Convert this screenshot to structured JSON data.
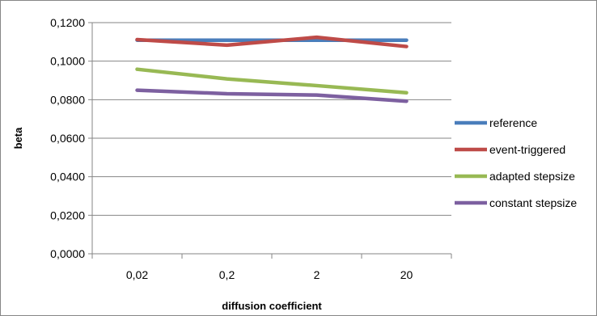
{
  "chart_data": {
    "type": "line",
    "categories": [
      "0,02",
      "0,2",
      "2",
      "20"
    ],
    "xlabel": "diffusion coefficient",
    "ylabel": "beta",
    "ylim": [
      0,
      0.12
    ],
    "y_ticks": [
      "0,0000",
      "0,0200",
      "0,0400",
      "0,0600",
      "0,0800",
      "0,1000",
      "0,1200"
    ],
    "grid": "horizontal",
    "legend_position": "right",
    "series": [
      {
        "name": "reference",
        "color": "#4a7ebb",
        "values": [
          0.1109,
          0.1109,
          0.1109,
          0.1109
        ]
      },
      {
        "name": "event-triggered",
        "color": "#be4b48",
        "values": [
          0.1112,
          0.1083,
          0.1124,
          0.1076
        ]
      },
      {
        "name": "adapted stepsize",
        "color": "#98b954",
        "values": [
          0.0958,
          0.0908,
          0.0873,
          0.0836
        ]
      },
      {
        "name": "constant stepsize",
        "color": "#7d60a0",
        "values": [
          0.0849,
          0.0831,
          0.0824,
          0.0792
        ]
      }
    ]
  }
}
